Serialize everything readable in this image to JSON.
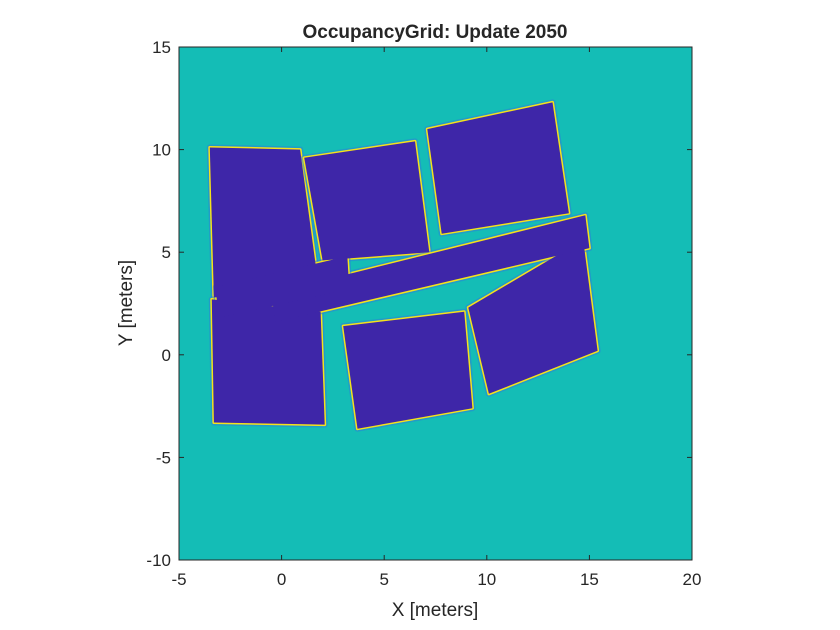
{
  "figure": {
    "background": "#ffffff"
  },
  "chart_data": {
    "type": "heatmap",
    "title": "OccupancyGrid: Update 2050",
    "xlabel": "X [meters]",
    "ylabel": "Y [meters]",
    "xlim": [
      -5,
      20
    ],
    "ylim": [
      -10,
      15
    ],
    "xticks": [
      -5,
      0,
      5,
      10,
      15,
      20
    ],
    "yticks": [
      -10,
      -5,
      0,
      5,
      10,
      15
    ],
    "xtick_labels": [
      "-5",
      "0",
      "5",
      "10",
      "15",
      "20"
    ],
    "ytick_labels": [
      "-10",
      "-5",
      "0",
      "5",
      "10",
      "15"
    ],
    "grid": false,
    "legend": "none",
    "colormap": "parula",
    "colors": {
      "unknown": "#14bdb6",
      "free": "#3e26a8",
      "occupied": "#f5e21b",
      "partial_free": "#2c7fd8",
      "partial": "#25b4b8"
    },
    "regions": [
      {
        "name": "room-top-left",
        "corners": [
          [
            -3.5,
            10.1
          ],
          [
            0.9,
            10.0
          ],
          [
            1.9,
            2.6
          ],
          [
            -3.3,
            2.8
          ]
        ]
      },
      {
        "name": "room-top-middle",
        "corners": [
          [
            1.1,
            9.6
          ],
          [
            6.5,
            10.4
          ],
          [
            7.2,
            5.0
          ],
          [
            2.0,
            4.6
          ]
        ]
      },
      {
        "name": "room-top-right",
        "corners": [
          [
            7.1,
            11.0
          ],
          [
            13.2,
            12.3
          ],
          [
            14.0,
            6.9
          ],
          [
            7.8,
            5.9
          ]
        ]
      },
      {
        "name": "room-bottom-left",
        "corners": [
          [
            -3.4,
            2.7
          ],
          [
            1.9,
            2.1
          ],
          [
            2.1,
            -3.4
          ],
          [
            -3.3,
            -3.3
          ]
        ]
      },
      {
        "name": "room-bottom-middle",
        "corners": [
          [
            3.0,
            1.4
          ],
          [
            8.9,
            2.1
          ],
          [
            9.3,
            -2.6
          ],
          [
            3.7,
            -3.6
          ]
        ]
      },
      {
        "name": "room-bottom-right",
        "corners": [
          [
            9.1,
            2.3
          ],
          [
            14.7,
            5.6
          ],
          [
            15.4,
            0.2
          ],
          [
            10.1,
            -1.9
          ]
        ]
      },
      {
        "name": "corridor",
        "corners": [
          [
            -0.5,
            3.0
          ],
          [
            14.8,
            6.8
          ],
          [
            15.0,
            5.2
          ],
          [
            -0.3,
            1.6
          ]
        ]
      },
      {
        "name": "corridor-west",
        "corners": [
          [
            -3.2,
            3.3
          ],
          [
            3.2,
            4.8
          ],
          [
            3.3,
            3.2
          ],
          [
            -3.1,
            1.8
          ]
        ]
      }
    ]
  }
}
